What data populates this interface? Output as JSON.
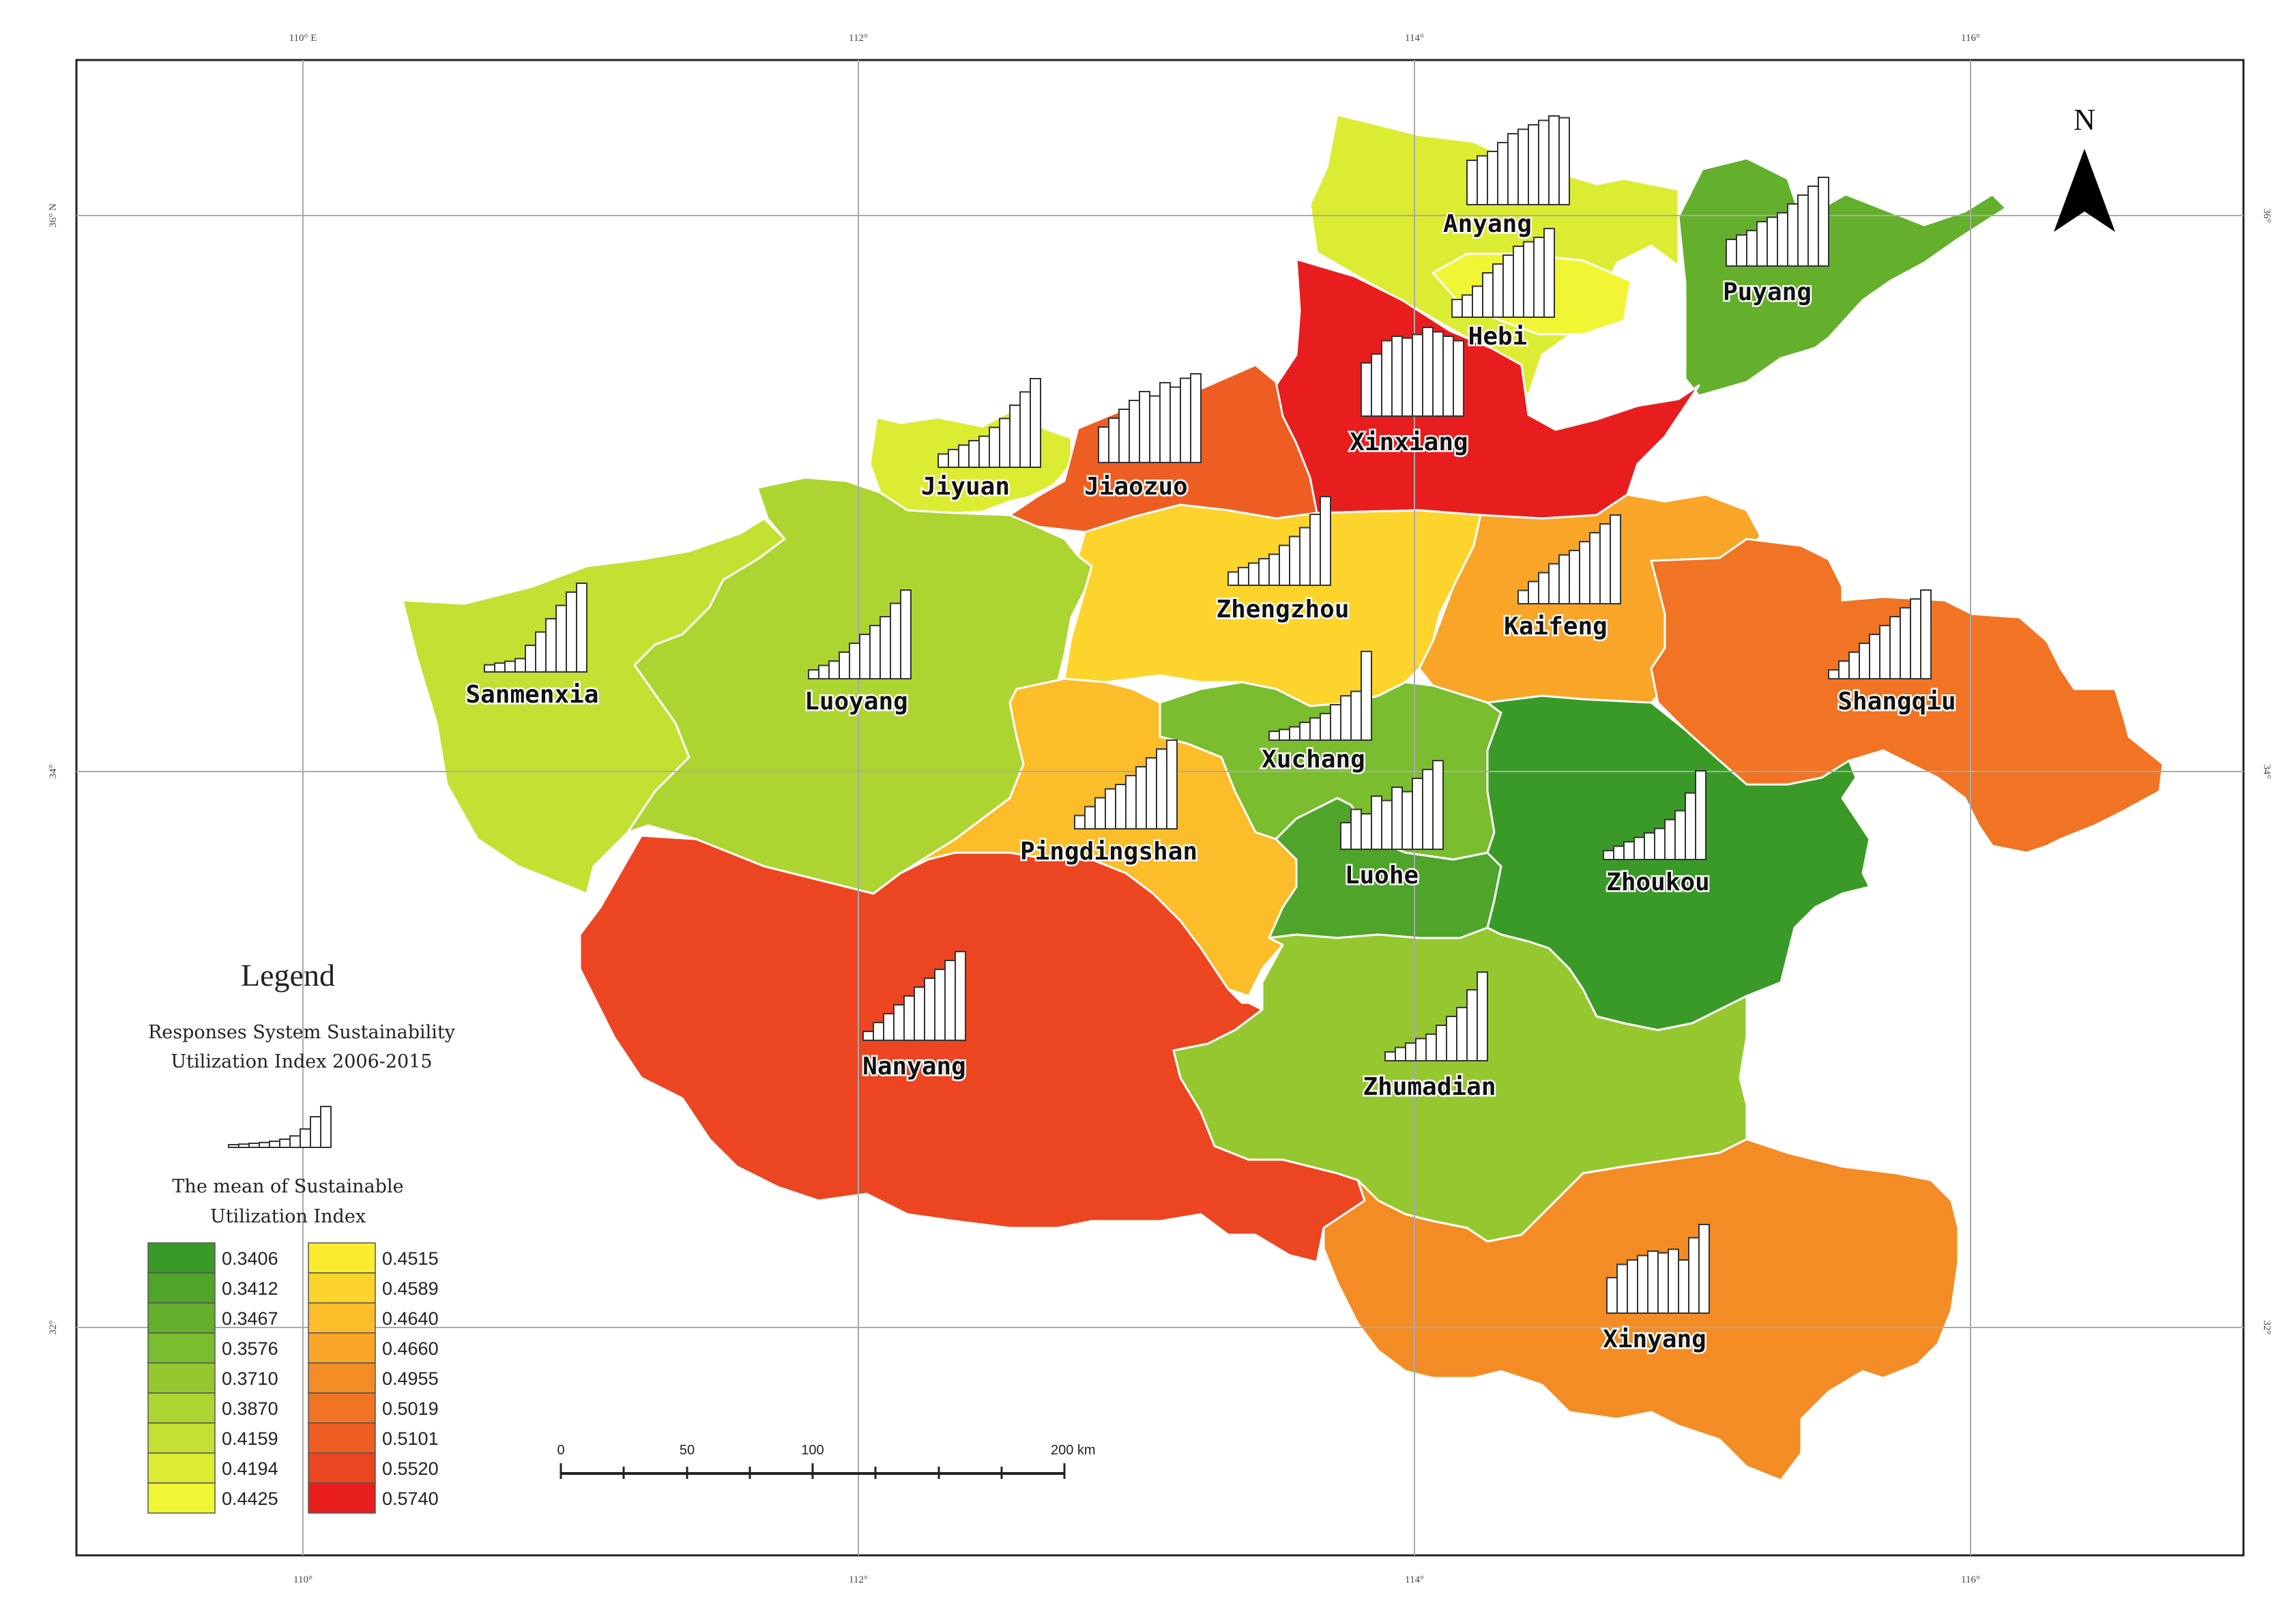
{
  "axes": {
    "top": [
      "110° E",
      "112°",
      "114°",
      "116°"
    ],
    "bottom": [
      "110°",
      "112°",
      "114°",
      "116°"
    ],
    "left": [
      "36° N",
      "34°",
      "32°"
    ],
    "right": [
      "36°",
      "34°",
      "32°"
    ]
  },
  "north": "N",
  "legend": {
    "title": "Legend",
    "subtitle_line1": "Responses System Sustainability",
    "subtitle_line2": "Utilization Index 2006-2015",
    "mean_line1": "The mean of Sustainable",
    "mean_line2": "Utilization Index",
    "sample_bars": [
      0.06,
      0.08,
      0.1,
      0.12,
      0.15,
      0.2,
      0.28,
      0.45,
      0.75,
      1.0
    ],
    "classes": [
      {
        "value": "0.3406",
        "color": "#3a9a28"
      },
      {
        "value": "0.3412",
        "color": "#4ea52a"
      },
      {
        "value": "0.3467",
        "color": "#64b02c"
      },
      {
        "value": "0.3576",
        "color": "#7abd2e"
      },
      {
        "value": "0.3710",
        "color": "#95c82f"
      },
      {
        "value": "0.3870",
        "color": "#acd531"
      },
      {
        "value": "0.4159",
        "color": "#c4e032"
      },
      {
        "value": "0.4194",
        "color": "#dcec33"
      },
      {
        "value": "0.4425",
        "color": "#f0f534"
      },
      {
        "value": "0.4515",
        "color": "#fcec2e"
      },
      {
        "value": "0.4589",
        "color": "#fcd42b"
      },
      {
        "value": "0.4640",
        "color": "#fcbd2a"
      },
      {
        "value": "0.4660",
        "color": "#f8a528"
      },
      {
        "value": "0.4955",
        "color": "#f48c26"
      },
      {
        "value": "0.5019",
        "color": "#f07424"
      },
      {
        "value": "0.5101",
        "color": "#ee5e22"
      },
      {
        "value": "0.5520",
        "color": "#ec4521"
      },
      {
        "value": "0.5740",
        "color": "#e81e1e"
      }
    ]
  },
  "scale": {
    "labels": [
      "0",
      "50",
      "100",
      "200 km"
    ]
  },
  "regions": [
    {
      "name": "Anyang",
      "color": "#dcec33",
      "bars": [
        0.5,
        0.55,
        0.6,
        0.7,
        0.8,
        0.85,
        0.9,
        0.95,
        1.0,
        0.98
      ]
    },
    {
      "name": "Hebi",
      "color": "#f0f534",
      "bars": [
        0.2,
        0.25,
        0.35,
        0.5,
        0.6,
        0.7,
        0.8,
        0.85,
        0.9,
        1.0
      ]
    },
    {
      "name": "Puyang",
      "color": "#64b02c",
      "bars": [
        0.3,
        0.35,
        0.4,
        0.5,
        0.55,
        0.6,
        0.7,
        0.8,
        0.9,
        1.0
      ]
    },
    {
      "name": "Xinxiang",
      "color": "#e81e1e",
      "bars": [
        0.6,
        0.7,
        0.85,
        0.9,
        0.88,
        0.92,
        1.0,
        0.95,
        0.9,
        0.85
      ]
    },
    {
      "name": "Jiyuan",
      "color": "#dcec33",
      "bars": [
        0.15,
        0.2,
        0.25,
        0.3,
        0.35,
        0.45,
        0.55,
        0.7,
        0.85,
        1.0
      ]
    },
    {
      "name": "Jiaozuo",
      "color": "#ee5e22",
      "bars": [
        0.4,
        0.5,
        0.6,
        0.7,
        0.8,
        0.75,
        0.9,
        0.85,
        0.95,
        1.0
      ]
    },
    {
      "name": "Zhengzhou",
      "color": "#fcd42b",
      "bars": [
        0.15,
        0.2,
        0.25,
        0.3,
        0.35,
        0.45,
        0.55,
        0.65,
        0.8,
        1.0
      ]
    },
    {
      "name": "Kaifeng",
      "color": "#f8a528",
      "bars": [
        0.15,
        0.25,
        0.35,
        0.45,
        0.55,
        0.6,
        0.7,
        0.8,
        0.9,
        1.0
      ]
    },
    {
      "name": "Shangqiu",
      "color": "#f07424",
      "bars": [
        0.1,
        0.2,
        0.3,
        0.4,
        0.5,
        0.6,
        0.7,
        0.8,
        0.9,
        1.0
      ]
    },
    {
      "name": "Sanmenxia",
      "color": "#c4e032",
      "bars": [
        0.08,
        0.1,
        0.12,
        0.15,
        0.3,
        0.45,
        0.6,
        0.75,
        0.9,
        1.0
      ]
    },
    {
      "name": "Luoyang",
      "color": "#acd531",
      "bars": [
        0.1,
        0.15,
        0.2,
        0.3,
        0.4,
        0.5,
        0.6,
        0.7,
        0.85,
        1.0
      ]
    },
    {
      "name": "Xuchang",
      "color": "#7abd2e",
      "bars": [
        0.1,
        0.12,
        0.15,
        0.2,
        0.25,
        0.3,
        0.4,
        0.5,
        0.55,
        1.0
      ]
    },
    {
      "name": "Pingdingshan",
      "color": "#fcbd2a",
      "bars": [
        0.15,
        0.25,
        0.35,
        0.45,
        0.5,
        0.6,
        0.7,
        0.8,
        0.9,
        1.0
      ]
    },
    {
      "name": "Luohe",
      "color": "#4ea52a",
      "bars": [
        0.3,
        0.45,
        0.4,
        0.6,
        0.55,
        0.7,
        0.65,
        0.8,
        0.9,
        1.0
      ]
    },
    {
      "name": "Zhoukou",
      "color": "#3a9a28",
      "bars": [
        0.1,
        0.15,
        0.2,
        0.25,
        0.3,
        0.35,
        0.45,
        0.55,
        0.75,
        1.0
      ]
    },
    {
      "name": "Nanyang",
      "color": "#ec4521",
      "bars": [
        0.1,
        0.2,
        0.3,
        0.4,
        0.5,
        0.6,
        0.7,
        0.8,
        0.9,
        1.0
      ]
    },
    {
      "name": "Zhumadian",
      "color": "#95c82f",
      "bars": [
        0.1,
        0.15,
        0.2,
        0.25,
        0.3,
        0.4,
        0.5,
        0.6,
        0.8,
        1.0
      ]
    },
    {
      "name": "Xinyang",
      "color": "#f48c26",
      "bars": [
        0.4,
        0.55,
        0.6,
        0.65,
        0.7,
        0.68,
        0.72,
        0.6,
        0.85,
        1.0
      ]
    }
  ]
}
